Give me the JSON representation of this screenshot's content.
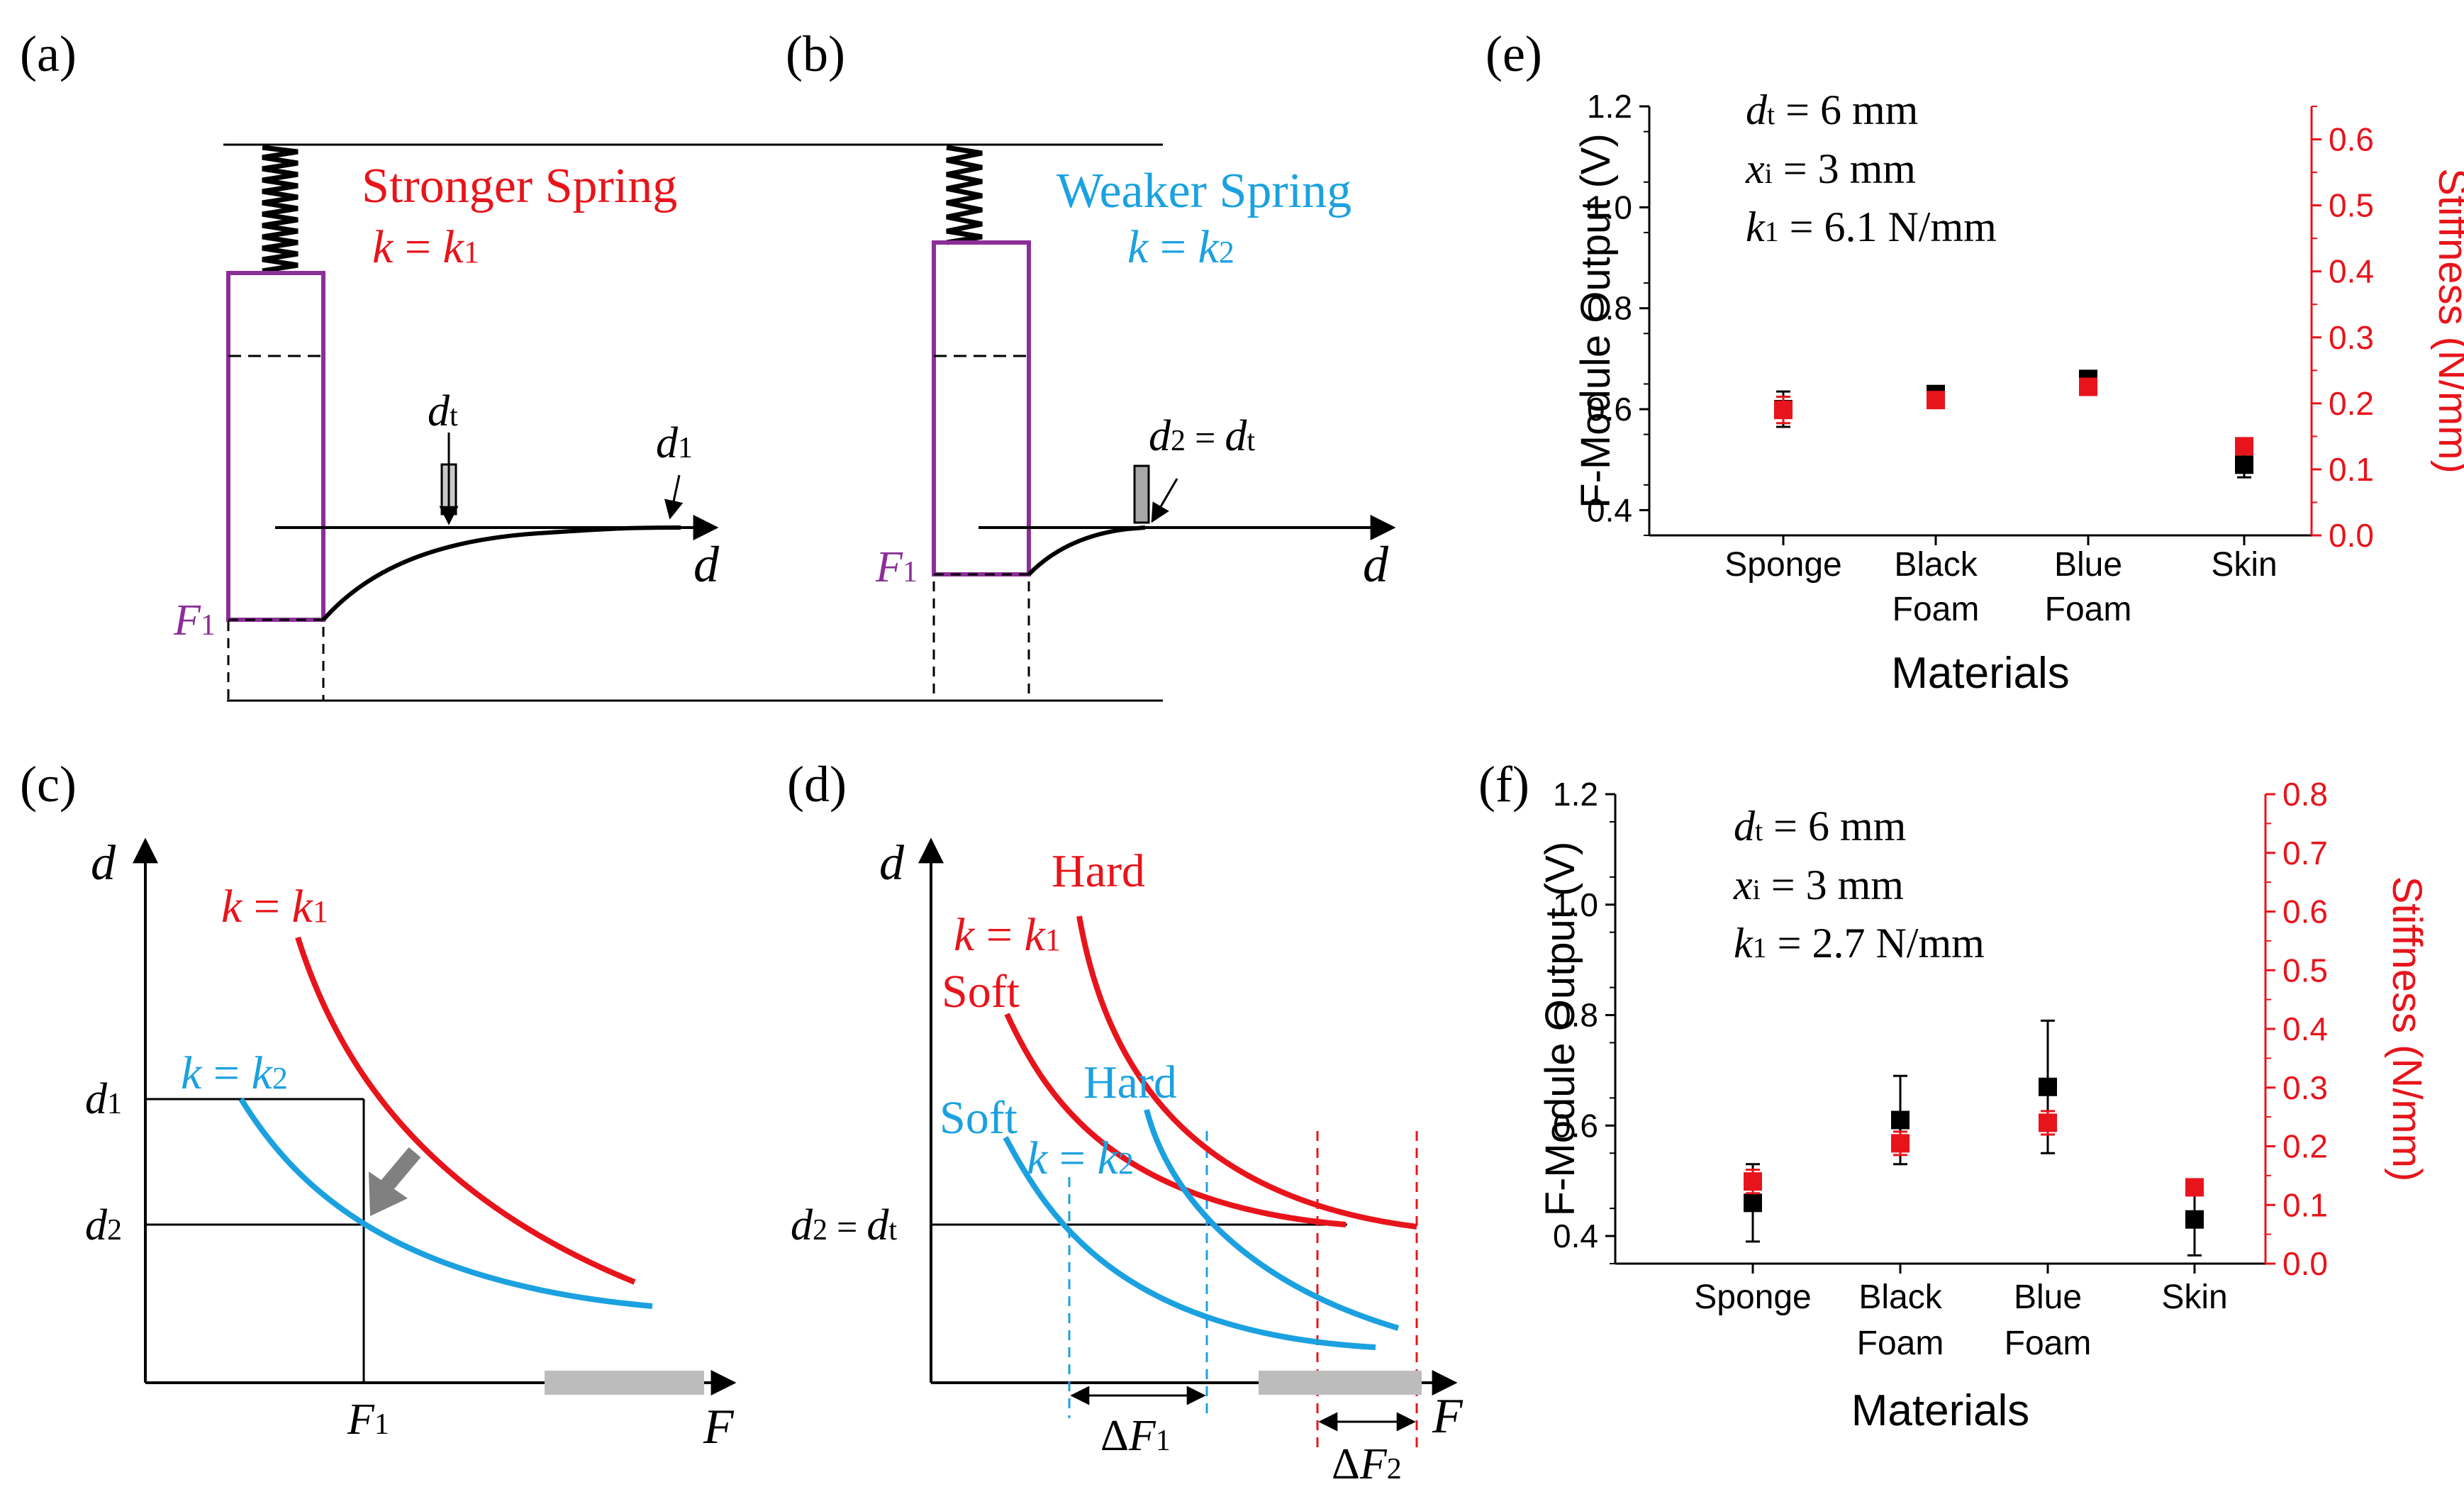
{
  "colors": {
    "red": "#e8141b",
    "blue": "#1ba1e0",
    "purple": "#8b2f97",
    "gray": "#8f8f8f",
    "black": "#000000"
  },
  "panel_a": {
    "letter": "(a)",
    "title": "Stronger Spring",
    "k_label": "k",
    "k_eq": " = ",
    "k_val": "k",
    "k_sub": "1",
    "dt_main": "d",
    "dt_sub": "t",
    "d1_main": "d",
    "d1_sub": "1",
    "axis_d": "d",
    "f_main": "F",
    "f_sub": "1"
  },
  "panel_b": {
    "letter": "(b)",
    "title": "Weaker Spring",
    "k_label": "k",
    "k_eq": " = ",
    "k_val": "k",
    "k_sub": "2",
    "d2_main": "d",
    "d2_sub": "2",
    "d2_eq": " = ",
    "dt_main": "d",
    "dt_sub": "t",
    "axis_d": "d",
    "f_main": "F",
    "f_sub": "1"
  },
  "panel_c": {
    "letter": "(c)",
    "axis_y": "d",
    "axis_x": "F",
    "k1_k": "k",
    "k1_eq": " = ",
    "k1_v": "k",
    "k1_sub": "1",
    "k2_k": "k",
    "k2_eq": " = ",
    "k2_v": "k",
    "k2_sub": "2",
    "d1_main": "d",
    "d1_sub": "1",
    "d2_main": "d",
    "d2_sub": "2",
    "f1_main": "F",
    "f1_sub": "1"
  },
  "panel_d": {
    "letter": "(d)",
    "axis_y": "d",
    "axis_x": "F",
    "hard_red": "Hard",
    "soft_red": "Soft",
    "hard_blue": "Hard",
    "soft_blue": "Soft",
    "k1_k": "k",
    "k1_eq": " = ",
    "k1_v": "k",
    "k1_sub": "1",
    "k2_k": "k",
    "k2_eq": " = ",
    "k2_v": "k",
    "k2_sub": "2",
    "d2_main": "d",
    "d2_sub": "2",
    "d2_eq": " = ",
    "dt_main": "d",
    "dt_sub": "t",
    "df1_delta": "Δ",
    "df1_main": "F",
    "df1_sub": "1",
    "df2_delta": "Δ",
    "df2_main": "F",
    "df2_sub": "2"
  },
  "chart_data": [
    {
      "id": "e",
      "letter": "(e)",
      "type": "scatter",
      "xlabel": "Materials",
      "ylabel_left": "F-Module Output (V)",
      "ylabel_right": "Stiffness (N/mm)",
      "categories": [
        [
          "Sponge"
        ],
        [
          "Black",
          "Foam"
        ],
        [
          "Blue",
          "Foam"
        ],
        [
          "Skin"
        ]
      ],
      "ylim_left": [
        0.35,
        1.2
      ],
      "yticks_left": [
        "0.4",
        "0.6",
        "0.8",
        "1.0",
        "1.2"
      ],
      "ylim_right": [
        0.0,
        0.65
      ],
      "yticks_right": [
        "0.0",
        "0.1",
        "0.2",
        "0.3",
        "0.4",
        "0.5",
        "0.6"
      ],
      "annotations": {
        "dt_main": "d",
        "dt_sub": "t",
        "dt_val": " = 6 mm",
        "xi_main": "x",
        "xi_sub": "i",
        "xi_val": " = 3 mm",
        "k1_main": "k",
        "k1_sub": "1",
        "k1_val": " = 6.1 N/mm"
      },
      "series": [
        {
          "name": "F-Module Output",
          "axis": "left",
          "color": "#000000",
          "values": [
            0.6,
            0.63,
            0.66,
            0.49
          ],
          "errors": [
            0.035,
            0.015,
            0.01,
            0.025
          ]
        },
        {
          "name": "Stiffness",
          "axis": "right",
          "color": "#e8141b",
          "values": [
            0.19,
            0.205,
            0.225,
            0.135
          ],
          "errors": [
            0.02,
            0.01,
            0.01,
            0.01
          ]
        }
      ]
    },
    {
      "id": "f",
      "letter": "(f)",
      "type": "scatter",
      "xlabel": "Materials",
      "ylabel_left": "F-Module Output (V)",
      "ylabel_right": "Stiffness (N/mm)",
      "categories": [
        [
          "Sponge"
        ],
        [
          "Black",
          "Foam"
        ],
        [
          "Blue",
          "Foam"
        ],
        [
          "Skin"
        ]
      ],
      "ylim_left": [
        0.35,
        1.2
      ],
      "yticks_left": [
        "0.4",
        "0.6",
        "0.8",
        "1.0",
        "1.2"
      ],
      "ylim_right": [
        0.0,
        0.8
      ],
      "yticks_right": [
        "0.0",
        "0.1",
        "0.2",
        "0.3",
        "0.4",
        "0.5",
        "0.6",
        "0.7",
        "0.8"
      ],
      "annotations": {
        "dt_main": "d",
        "dt_sub": "t",
        "dt_val": " = 6 mm",
        "xi_main": "x",
        "xi_sub": "i",
        "xi_val": " = 3 mm",
        "k1_main": "k",
        "k1_sub": "1",
        "k1_val": " = 2.7 N/mm"
      },
      "series": [
        {
          "name": "F-Module Output",
          "axis": "left",
          "color": "#000000",
          "values": [
            0.46,
            0.61,
            0.67,
            0.43
          ],
          "errors": [
            0.07,
            0.08,
            0.12,
            0.065
          ]
        },
        {
          "name": "Stiffness",
          "axis": "right",
          "color": "#e8141b",
          "values": [
            0.14,
            0.205,
            0.24,
            0.13
          ],
          "errors": [
            0.02,
            0.02,
            0.02,
            0.01
          ]
        }
      ]
    }
  ]
}
